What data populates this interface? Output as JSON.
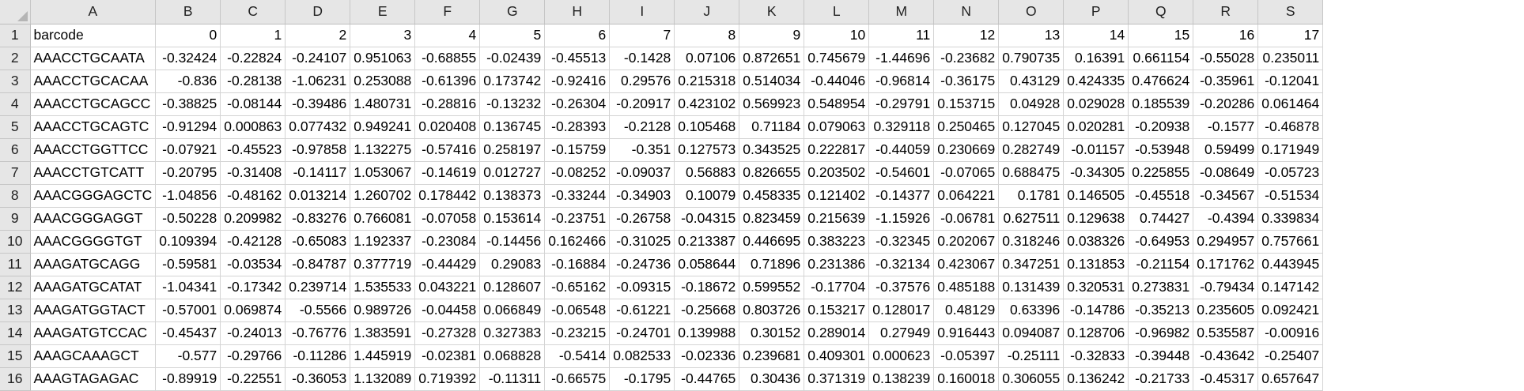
{
  "columns": [
    "A",
    "B",
    "C",
    "D",
    "E",
    "F",
    "G",
    "H",
    "I",
    "J",
    "K",
    "L",
    "M",
    "N",
    "O",
    "P",
    "Q",
    "R",
    "S"
  ],
  "header_row": [
    "barcode",
    "0",
    "1",
    "2",
    "3",
    "4",
    "5",
    "6",
    "7",
    "8",
    "9",
    "10",
    "11",
    "12",
    "13",
    "14",
    "15",
    "16",
    "17"
  ],
  "rows": [
    {
      "n": "2",
      "cells": [
        "AAACCTGCAATA",
        "-0.32424",
        "-0.22824",
        "-0.24107",
        "0.951063",
        "-0.68855",
        "-0.02439",
        "-0.45513",
        "-0.1428",
        "0.07106",
        "0.872651",
        "0.745679",
        "-1.44696",
        "-0.23682",
        "0.790735",
        "0.16391",
        "0.661154",
        "-0.55028",
        "0.235011"
      ]
    },
    {
      "n": "3",
      "cells": [
        "AAACCTGCACAA",
        "-0.836",
        "-0.28138",
        "-1.06231",
        "0.253088",
        "-0.61396",
        "0.173742",
        "-0.92416",
        "0.29576",
        "0.215318",
        "0.514034",
        "-0.44046",
        "-0.96814",
        "-0.36175",
        "0.43129",
        "0.424335",
        "0.476624",
        "-0.35961",
        "-0.12041"
      ]
    },
    {
      "n": "4",
      "cells": [
        "AAACCTGCAGCC",
        "-0.38825",
        "-0.08144",
        "-0.39486",
        "1.480731",
        "-0.28816",
        "-0.13232",
        "-0.26304",
        "-0.20917",
        "0.423102",
        "0.569923",
        "0.548954",
        "-0.29791",
        "0.153715",
        "0.04928",
        "0.029028",
        "0.185539",
        "-0.20286",
        "0.061464"
      ]
    },
    {
      "n": "5",
      "cells": [
        "AAACCTGCAGTC",
        "-0.91294",
        "0.000863",
        "0.077432",
        "0.949241",
        "0.020408",
        "0.136745",
        "-0.28393",
        "-0.2128",
        "0.105468",
        "0.71184",
        "0.079063",
        "0.329118",
        "0.250465",
        "0.127045",
        "0.020281",
        "-0.20938",
        "-0.1577",
        "-0.46878"
      ]
    },
    {
      "n": "6",
      "cells": [
        "AAACCTGGTTCC",
        "-0.07921",
        "-0.45523",
        "-0.97858",
        "1.132275",
        "-0.57416",
        "0.258197",
        "-0.15759",
        "-0.351",
        "0.127573",
        "0.343525",
        "0.222817",
        "-0.44059",
        "0.230669",
        "0.282749",
        "-0.01157",
        "-0.53948",
        "0.59499",
        "0.171949"
      ]
    },
    {
      "n": "7",
      "cells": [
        "AAACCTGTCATT",
        "-0.20795",
        "-0.31408",
        "-0.14117",
        "1.053067",
        "-0.14619",
        "0.012727",
        "-0.08252",
        "-0.09037",
        "0.56883",
        "0.826655",
        "0.203502",
        "-0.54601",
        "-0.07065",
        "0.688475",
        "-0.34305",
        "0.225855",
        "-0.08649",
        "-0.05723"
      ]
    },
    {
      "n": "8",
      "cells": [
        "AAACGGGAGCTC",
        "-1.04856",
        "-0.48162",
        "0.013214",
        "1.260702",
        "0.178442",
        "0.138373",
        "-0.33244",
        "-0.34903",
        "0.10079",
        "0.458335",
        "0.121402",
        "-0.14377",
        "0.064221",
        "0.1781",
        "0.146505",
        "-0.45518",
        "-0.34567",
        "-0.51534"
      ]
    },
    {
      "n": "9",
      "cells": [
        "AAACGGGAGGT",
        "-0.50228",
        "0.209982",
        "-0.83276",
        "0.766081",
        "-0.07058",
        "0.153614",
        "-0.23751",
        "-0.26758",
        "-0.04315",
        "0.823459",
        "0.215639",
        "-1.15926",
        "-0.06781",
        "0.627511",
        "0.129638",
        "0.74427",
        "-0.4394",
        "0.339834"
      ]
    },
    {
      "n": "10",
      "cells": [
        "AAACGGGGTGT",
        "0.109394",
        "-0.42128",
        "-0.65083",
        "1.192337",
        "-0.23084",
        "-0.14456",
        "0.162466",
        "-0.31025",
        "0.213387",
        "0.446695",
        "0.383223",
        "-0.32345",
        "0.202067",
        "0.318246",
        "0.038326",
        "-0.64953",
        "0.294957",
        "0.757661"
      ]
    },
    {
      "n": "11",
      "cells": [
        "AAAGATGCAGG",
        "-0.59581",
        "-0.03534",
        "-0.84787",
        "0.377719",
        "-0.44429",
        "0.29083",
        "-0.16884",
        "-0.24736",
        "0.058644",
        "0.71896",
        "0.231386",
        "-0.32134",
        "0.423067",
        "0.347251",
        "0.131853",
        "-0.21154",
        "0.171762",
        "0.443945"
      ]
    },
    {
      "n": "12",
      "cells": [
        "AAAGATGCATAT",
        "-1.04341",
        "-0.17342",
        "0.239714",
        "1.535533",
        "0.043221",
        "0.128607",
        "-0.65162",
        "-0.09315",
        "-0.18672",
        "0.599552",
        "-0.17704",
        "-0.37576",
        "0.485188",
        "0.131439",
        "0.320531",
        "0.273831",
        "-0.79434",
        "0.147142"
      ]
    },
    {
      "n": "13",
      "cells": [
        "AAAGATGGTACT",
        "-0.57001",
        "0.069874",
        "-0.5566",
        "0.989726",
        "-0.04458",
        "0.066849",
        "-0.06548",
        "-0.61221",
        "-0.25668",
        "0.803726",
        "0.153217",
        "0.128017",
        "0.48129",
        "0.63396",
        "-0.14786",
        "-0.35213",
        "0.235605",
        "0.092421"
      ]
    },
    {
      "n": "14",
      "cells": [
        "AAAGATGTCCAC",
        "-0.45437",
        "-0.24013",
        "-0.76776",
        "1.383591",
        "-0.27328",
        "0.327383",
        "-0.23215",
        "-0.24701",
        "0.139988",
        "0.30152",
        "0.289014",
        "0.27949",
        "0.916443",
        "0.094087",
        "0.128706",
        "-0.96982",
        "0.535587",
        "-0.00916"
      ]
    },
    {
      "n": "15",
      "cells": [
        "AAAGCAAAGCT",
        "-0.577",
        "-0.29766",
        "-0.11286",
        "1.445919",
        "-0.02381",
        "0.068828",
        "-0.5414",
        "0.082533",
        "-0.02336",
        "0.239681",
        "0.409301",
        "0.000623",
        "-0.05397",
        "-0.25111",
        "-0.32833",
        "-0.39448",
        "-0.43642",
        "-0.25407"
      ]
    },
    {
      "n": "16",
      "cells": [
        "AAAGTAGAGAC",
        "-0.89919",
        "-0.22551",
        "-0.36053",
        "1.132089",
        "0.719392",
        "-0.11311",
        "-0.66575",
        "-0.1795",
        "-0.44765",
        "0.30436",
        "0.371319",
        "0.138239",
        "0.160018",
        "0.306055",
        "0.136242",
        "-0.21733",
        "-0.45317",
        "0.657647"
      ]
    }
  ]
}
